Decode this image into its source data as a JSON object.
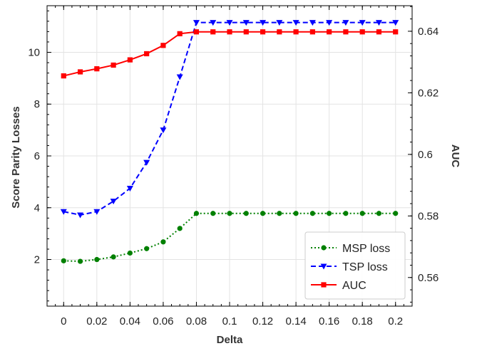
{
  "chart_data": {
    "type": "line",
    "x": [
      0,
      0.01,
      0.02,
      0.03,
      0.04,
      0.05,
      0.06,
      0.07,
      0.08,
      0.09,
      0.1,
      0.11,
      0.12,
      0.13,
      0.14,
      0.15,
      0.16,
      0.17,
      0.18,
      0.19,
      0.2
    ],
    "xlabel": "Delta",
    "ylabel": "Score Parity Losses",
    "y2label": "AUC",
    "xlim": [
      -0.01,
      0.21
    ],
    "ylim": [
      0.2,
      11.8
    ],
    "y2lim": [
      0.5507,
      0.6483
    ],
    "xticks": [
      0,
      0.02,
      0.04,
      0.06,
      0.08,
      0.1,
      0.12,
      0.14,
      0.16,
      0.18,
      0.2
    ],
    "xtick_labels": [
      "0",
      "0.02",
      "0.04",
      "0.06",
      "0.08",
      "0.1",
      "0.12",
      "0.14",
      "0.16",
      "0.18",
      "0.2"
    ],
    "yticks": [
      2,
      4,
      6,
      8,
      10
    ],
    "ytick_labels": [
      "2",
      "4",
      "6",
      "8",
      "10"
    ],
    "y2ticks": [
      0.56,
      0.58,
      0.6,
      0.62,
      0.64
    ],
    "y2tick_labels": [
      "0.56",
      "0.58",
      "0.6",
      "0.62",
      "0.64"
    ],
    "grid": true,
    "legend_position": "bottom-right",
    "series": [
      {
        "name": "MSP loss",
        "axis": "left",
        "color": "#008000",
        "line_style": "dotted",
        "marker": "circle",
        "values": [
          1.95,
          1.93,
          2.0,
          2.1,
          2.25,
          2.42,
          2.68,
          3.2,
          3.78,
          3.78,
          3.78,
          3.78,
          3.78,
          3.78,
          3.78,
          3.78,
          3.78,
          3.78,
          3.78,
          3.78,
          3.78
        ]
      },
      {
        "name": "TSP loss",
        "axis": "left",
        "color": "#0000ff",
        "line_style": "dashed",
        "marker": "triangle-down",
        "values": [
          3.85,
          3.72,
          3.85,
          4.25,
          4.75,
          5.75,
          7.0,
          9.05,
          11.15,
          11.15,
          11.15,
          11.15,
          11.15,
          11.15,
          11.15,
          11.15,
          11.15,
          11.15,
          11.15,
          11.15,
          11.15
        ]
      },
      {
        "name": "AUC",
        "axis": "right",
        "color": "#ff0000",
        "line_style": "solid",
        "marker": "square",
        "values": [
          0.6255,
          0.6268,
          0.6278,
          0.629,
          0.6307,
          0.6327,
          0.6354,
          0.6392,
          0.6398,
          0.6398,
          0.6398,
          0.6398,
          0.6398,
          0.6398,
          0.6398,
          0.6398,
          0.6398,
          0.6398,
          0.6398,
          0.6398,
          0.6398
        ]
      }
    ]
  }
}
